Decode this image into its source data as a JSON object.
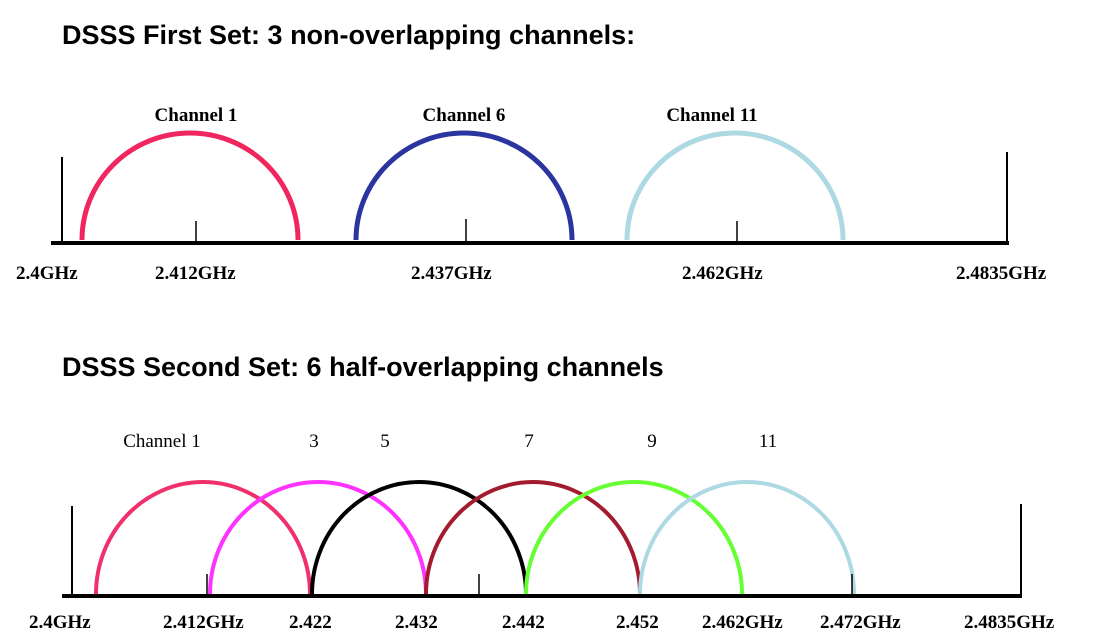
{
  "set1": {
    "title": "DSSS First Set: 3 non-overlapping channels:",
    "channels": [
      {
        "label": "Channel 1",
        "color": "#f0265e"
      },
      {
        "label": "Channel 6",
        "color": "#2b35a0"
      },
      {
        "label": "Channel 11",
        "color": "#add9e3"
      }
    ],
    "frequencies": [
      "2.4GHz",
      "2.412GHz",
      "2.437GHz",
      "2.462GHz",
      "2.4835GHz"
    ]
  },
  "set2": {
    "title": "DSSS Second Set: 6 half-overlapping channels",
    "channels": [
      {
        "label": "Channel 1",
        "color": "#f0306a"
      },
      {
        "label": "3",
        "color": "#ff33ff"
      },
      {
        "label": "5",
        "color": "#000000"
      },
      {
        "label": "7",
        "color": "#a31b2e"
      },
      {
        "label": "9",
        "color": "#66ff33"
      },
      {
        "label": "11",
        "color": "#add9e3"
      }
    ],
    "frequencies": [
      "2.4GHz",
      "2.412GHz",
      "2.422",
      "2.432",
      "2.442",
      "2.452",
      "2.462GHz",
      "2.472GHz",
      "2.4835GHz"
    ]
  }
}
